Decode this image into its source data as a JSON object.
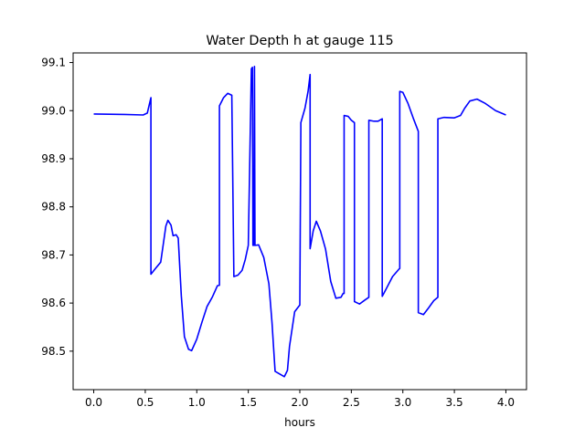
{
  "chart_data": {
    "type": "line",
    "title": "Water Depth h at gauge 115",
    "xlabel": "hours",
    "ylabel": "",
    "xlim": [
      -0.2,
      4.2
    ],
    "ylim": [
      98.42,
      99.12
    ],
    "x_ticks": [
      0.0,
      0.5,
      1.0,
      1.5,
      2.0,
      2.5,
      3.0,
      3.5,
      4.0
    ],
    "x_tick_labels": [
      "0.0",
      "0.5",
      "1.0",
      "1.5",
      "2.0",
      "2.5",
      "3.0",
      "3.5",
      "4.0"
    ],
    "y_ticks": [
      98.5,
      98.6,
      98.7,
      98.8,
      98.9,
      99.0,
      99.1
    ],
    "y_tick_labels": [
      "98.5",
      "98.6",
      "98.7",
      "98.8",
      "98.9",
      "99.0",
      "99.1"
    ],
    "grid": false,
    "legend": "none",
    "series": [
      {
        "color": "#0000ff",
        "x": [
          0.0,
          0.3,
          0.48,
          0.52,
          0.555,
          0.555,
          0.6,
          0.65,
          0.7,
          0.72,
          0.75,
          0.77,
          0.8,
          0.82,
          0.85,
          0.88,
          0.92,
          0.95,
          1.0,
          1.05,
          1.1,
          1.15,
          1.2,
          1.22,
          1.22,
          1.26,
          1.3,
          1.34,
          1.36,
          1.36,
          1.4,
          1.44,
          1.47,
          1.5,
          1.53,
          1.54,
          1.545,
          1.555,
          1.56,
          1.565,
          1.57,
          1.6,
          1.65,
          1.7,
          1.73,
          1.76,
          1.8,
          1.85,
          1.88,
          1.9,
          1.95,
          2.0,
          2.01,
          2.01,
          2.05,
          2.08,
          2.1,
          2.1,
          2.13,
          2.16,
          2.2,
          2.25,
          2.3,
          2.35,
          2.4,
          2.42,
          2.43,
          2.43,
          2.47,
          2.5,
          2.53,
          2.53,
          2.58,
          2.63,
          2.67,
          2.67,
          2.72,
          2.76,
          2.8,
          2.8,
          2.84,
          2.9,
          2.96,
          2.97,
          2.97,
          3.0,
          3.05,
          3.1,
          3.15,
          3.15,
          3.2,
          3.25,
          3.3,
          3.34,
          3.34,
          3.4,
          3.5,
          3.56,
          3.6,
          3.65,
          3.72,
          3.8,
          3.9,
          4.0
        ],
        "y": [
          98.993,
          98.992,
          98.991,
          98.995,
          99.027,
          98.66,
          98.672,
          98.685,
          98.76,
          98.772,
          98.762,
          98.74,
          98.742,
          98.735,
          98.615,
          98.53,
          98.504,
          98.501,
          98.525,
          98.56,
          98.593,
          98.612,
          98.636,
          98.637,
          99.01,
          99.027,
          99.036,
          99.032,
          98.658,
          98.655,
          98.658,
          98.668,
          98.69,
          98.72,
          99.087,
          99.09,
          98.72,
          98.72,
          99.092,
          98.72,
          98.72,
          98.721,
          98.695,
          98.64,
          98.56,
          98.458,
          98.453,
          98.447,
          98.46,
          98.51,
          98.582,
          98.596,
          98.962,
          98.975,
          99.005,
          99.04,
          99.075,
          98.713,
          98.75,
          98.77,
          98.75,
          98.712,
          98.645,
          98.61,
          98.612,
          98.62,
          98.62,
          98.99,
          98.988,
          98.98,
          98.975,
          98.603,
          98.598,
          98.606,
          98.612,
          98.98,
          98.978,
          98.978,
          98.983,
          98.614,
          98.63,
          98.655,
          98.67,
          98.672,
          99.04,
          99.038,
          99.015,
          98.985,
          98.957,
          98.58,
          98.576,
          98.59,
          98.605,
          98.612,
          98.983,
          98.986,
          98.985,
          98.99,
          99.005,
          99.02,
          99.024,
          99.015,
          99.0,
          98.991
        ]
      }
    ]
  }
}
